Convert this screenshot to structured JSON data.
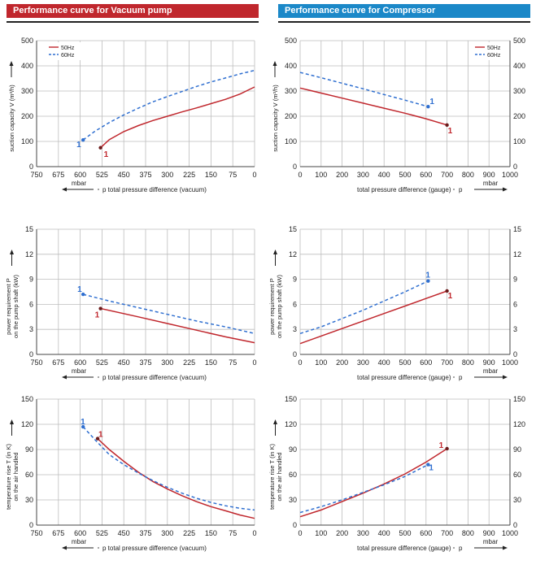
{
  "headers": {
    "left": "Performance curve for Vacuum pump",
    "right": "Performance curve for Compressor"
  },
  "colors": {
    "c50": "#c0272d",
    "c60": "#2f6fd0",
    "grid": "#bdbdbd",
    "axis": "#444444"
  },
  "chart_data": [
    {
      "id": "vac-flow",
      "type": "line",
      "ylabel": "suction capacity V (m³/h)",
      "yticks": [
        0,
        100,
        200,
        300,
        400,
        500
      ],
      "ylim": [
        0,
        500
      ],
      "xticks": [
        750,
        675,
        600,
        525,
        450,
        375,
        300,
        225,
        150,
        75,
        0
      ],
      "xlim": [
        750,
        0
      ],
      "unit_label": "mbar",
      "xlabel": "p total pressure difference (vacuum)",
      "legend": [
        "50Hz",
        "60Hz"
      ],
      "series": [
        {
          "name": "50Hz",
          "x": [
            530,
            500,
            450,
            400,
            350,
            300,
            250,
            200,
            150,
            100,
            50,
            0
          ],
          "y": [
            75,
            107,
            139,
            163,
            183,
            200,
            217,
            233,
            250,
            267,
            288,
            316
          ]
        },
        {
          "name": "60Hz",
          "x": [
            590,
            550,
            500,
            450,
            400,
            350,
            300,
            250,
            200,
            150,
            100,
            50,
            0
          ],
          "y": [
            106,
            140,
            175,
            205,
            232,
            257,
            278,
            298,
            318,
            336,
            352,
            368,
            382
          ]
        }
      ],
      "point_labels": [
        {
          "series": "50Hz",
          "x": 530,
          "y": 75,
          "label": "1"
        },
        {
          "series": "60Hz",
          "x": 590,
          "y": 106,
          "label": "1"
        }
      ]
    },
    {
      "id": "comp-flow",
      "type": "line",
      "ylabel": "suction capacity V (m³/h)",
      "yticks": [
        0,
        100,
        200,
        300,
        400,
        500
      ],
      "ylim": [
        0,
        500
      ],
      "xticks": [
        0,
        100,
        200,
        300,
        400,
        500,
        600,
        700,
        800,
        900,
        1000
      ],
      "xlim": [
        0,
        1000
      ],
      "xlabel": "total pressure difference (gauge)",
      "xlabel_p": "p",
      "unit_label": "mbar",
      "legend": [
        "50Hz",
        "60Hz"
      ],
      "series": [
        {
          "name": "50Hz",
          "x": [
            0,
            100,
            200,
            300,
            400,
            500,
            600,
            700
          ],
          "y": [
            312,
            292,
            272,
            252,
            232,
            212,
            190,
            165
          ]
        },
        {
          "name": "60Hz",
          "x": [
            0,
            100,
            200,
            300,
            400,
            500,
            610
          ],
          "y": [
            374,
            353,
            331,
            309,
            286,
            264,
            238
          ]
        }
      ],
      "point_labels": [
        {
          "series": "50Hz",
          "x": 700,
          "y": 165,
          "label": "1"
        },
        {
          "series": "60Hz",
          "x": 610,
          "y": 238,
          "label": "1"
        }
      ]
    },
    {
      "id": "vac-power",
      "type": "line",
      "ylabel": [
        "power requirement P",
        "on the pump shaft (kW)"
      ],
      "yticks": [
        0,
        3,
        6,
        9,
        12,
        15
      ],
      "ylim": [
        0,
        15
      ],
      "xticks": [
        750,
        675,
        600,
        525,
        450,
        375,
        300,
        225,
        150,
        75,
        0
      ],
      "xlim": [
        750,
        0
      ],
      "unit_label": "mbar",
      "xlabel": "p total pressure difference (vacuum)",
      "series": [
        {
          "name": "50Hz",
          "x": [
            530,
            400,
            300,
            200,
            100,
            0
          ],
          "y": [
            5.5,
            4.5,
            3.7,
            2.9,
            2.1,
            1.4
          ]
        },
        {
          "name": "60Hz",
          "x": [
            590,
            500,
            400,
            300,
            200,
            100,
            0
          ],
          "y": [
            7.2,
            6.4,
            5.6,
            4.8,
            4.0,
            3.3,
            2.5
          ]
        }
      ],
      "point_labels": [
        {
          "series": "50Hz",
          "x": 530,
          "y": 5.5,
          "label": "1"
        },
        {
          "series": "60Hz",
          "x": 590,
          "y": 7.2,
          "label": "1"
        }
      ]
    },
    {
      "id": "comp-power",
      "type": "line",
      "ylabel": [
        "power requirement P",
        "on the pump shaft (kW)"
      ],
      "yticks": [
        0,
        3,
        6,
        9,
        12,
        15
      ],
      "ylim": [
        0,
        15
      ],
      "xticks": [
        0,
        100,
        200,
        300,
        400,
        500,
        600,
        700,
        800,
        900,
        1000
      ],
      "xlim": [
        0,
        1000
      ],
      "xlabel": "total pressure difference (gauge)",
      "xlabel_p": "p",
      "unit_label": "mbar",
      "series": [
        {
          "name": "50Hz",
          "x": [
            0,
            100,
            200,
            300,
            400,
            500,
            600,
            700
          ],
          "y": [
            1.3,
            2.2,
            3.1,
            4.0,
            4.9,
            5.8,
            6.7,
            7.6
          ]
        },
        {
          "name": "60Hz",
          "x": [
            0,
            100,
            200,
            300,
            400,
            500,
            610
          ],
          "y": [
            2.5,
            3.3,
            4.3,
            5.3,
            6.4,
            7.5,
            8.8
          ]
        }
      ],
      "point_labels": [
        {
          "series": "50Hz",
          "x": 700,
          "y": 7.6,
          "label": "1"
        },
        {
          "series": "60Hz",
          "x": 610,
          "y": 8.8,
          "label": "1"
        }
      ]
    },
    {
      "id": "vac-temp",
      "type": "line",
      "ylabel": [
        "temperature rise T (in K)",
        "on the air handled"
      ],
      "yticks": [
        0,
        30,
        60,
        90,
        120,
        150
      ],
      "ylim": [
        0,
        150
      ],
      "xticks": [
        750,
        675,
        600,
        525,
        450,
        375,
        300,
        225,
        150,
        75,
        0
      ],
      "xlim": [
        750,
        0
      ],
      "unit_label": "mbar",
      "xlabel": "p total pressure difference (vacuum)",
      "series": [
        {
          "name": "50Hz",
          "x": [
            540,
            500,
            450,
            400,
            350,
            300,
            250,
            200,
            150,
            100,
            50,
            0
          ],
          "y": [
            103,
            90,
            76,
            63,
            52,
            43,
            35,
            28,
            22,
            17,
            12,
            8
          ]
        },
        {
          "name": "60Hz",
          "x": [
            590,
            550,
            500,
            450,
            400,
            350,
            300,
            250,
            200,
            150,
            100,
            50,
            0
          ],
          "y": [
            117,
            102,
            84,
            72,
            62,
            53,
            45,
            38,
            32,
            27,
            23,
            20,
            18
          ]
        }
      ],
      "point_labels": [
        {
          "series": "50Hz",
          "x": 540,
          "y": 103,
          "label": "1"
        },
        {
          "series": "60Hz",
          "x": 590,
          "y": 117,
          "label": "1"
        }
      ]
    },
    {
      "id": "comp-temp",
      "type": "line",
      "ylabel": [
        "temperature rise T (in K)",
        "on the air handled"
      ],
      "yticks": [
        0,
        30,
        60,
        90,
        120,
        150
      ],
      "ylim": [
        0,
        150
      ],
      "xticks": [
        0,
        100,
        200,
        300,
        400,
        500,
        600,
        700,
        800,
        900,
        1000
      ],
      "xlim": [
        0,
        1000
      ],
      "xlabel": "total pressure difference (gauge)",
      "xlabel_p": "p",
      "unit_label": "mbar",
      "series": [
        {
          "name": "50Hz",
          "x": [
            0,
            100,
            200,
            300,
            400,
            500,
            600,
            700
          ],
          "y": [
            10,
            18,
            28,
            38,
            49,
            61,
            75,
            91
          ]
        },
        {
          "name": "60Hz",
          "x": [
            0,
            100,
            200,
            300,
            400,
            500,
            610
          ],
          "y": [
            15,
            22,
            30,
            39,
            48,
            58,
            72
          ]
        }
      ],
      "point_labels": [
        {
          "series": "50Hz",
          "x": 700,
          "y": 91,
          "label": "1"
        },
        {
          "series": "60Hz",
          "x": 610,
          "y": 72,
          "label": "1"
        }
      ]
    }
  ]
}
